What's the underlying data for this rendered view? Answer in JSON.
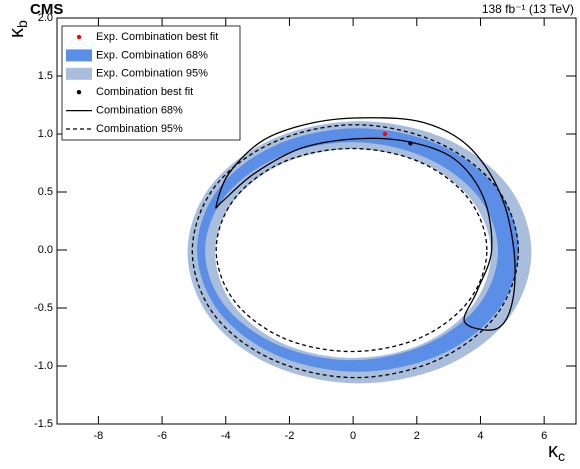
{
  "chart_data": {
    "type": "contour",
    "title": "CMS",
    "subtitle": "138 fb⁻¹ (13 TeV)",
    "xlabel": {
      "symbol": "κ",
      "subscript": "c"
    },
    "ylabel": {
      "symbol": "κ",
      "subscript": "b"
    },
    "xlim": [
      -9.3,
      7
    ],
    "ylim": [
      -1.5,
      2.0
    ],
    "xticks": [
      -8,
      -6,
      -4,
      -2,
      0,
      2,
      4,
      6
    ],
    "yticks": [
      -1.5,
      {
        "value": -1.0,
        "label": "-1.0"
      },
      -0.5,
      {
        "value": 0.0,
        "label": "0.0"
      },
      0.5,
      {
        "value": 1.0,
        "label": "1.0"
      },
      1.5,
      {
        "value": 2.0,
        "label": "2.0"
      }
    ],
    "series": [
      {
        "name": "Exp. Combination best fit",
        "kind": "point",
        "color": "#ff0000",
        "x": [
          1.0
        ],
        "y": [
          1.0
        ]
      },
      {
        "name": "Exp. Combination 68%",
        "kind": "band",
        "color": "#5b8ee6",
        "outer": {
          "x": [
            5.2,
            4.52,
            2.68,
            0.15,
            -2.38,
            -4.22,
            -4.9,
            -4.22,
            -2.38,
            0.15,
            2.68,
            4.52
          ],
          "y": [
            0,
            0.53,
            0.91,
            1.05,
            0.91,
            0.53,
            0,
            -0.53,
            -0.91,
            -1.05,
            -0.91,
            -0.53
          ]
        },
        "inner": {
          "x": [
            4.55,
            3.93,
            2.25,
            -0.05,
            -2.35,
            -4.03,
            -4.65,
            -4.03,
            -2.35,
            -0.05,
            2.25,
            3.93
          ],
          "y": [
            -0.01,
            0.46,
            0.8,
            0.93,
            0.8,
            0.46,
            -0.01,
            -0.48,
            -0.82,
            -0.95,
            -0.82,
            -0.48
          ]
        }
      },
      {
        "name": "Exp. Combination 95%",
        "kind": "band",
        "color": "#a9bedc",
        "outer": {
          "x": [
            5.6,
            4.88,
            2.9,
            0.2,
            -2.5,
            -4.48,
            -5.2,
            -4.48,
            -2.5,
            0.2,
            2.9,
            4.88
          ],
          "y": [
            -0.02,
            0.55,
            0.96,
            1.11,
            0.96,
            0.55,
            -0.02,
            -0.59,
            -1.0,
            -1.15,
            -1.0,
            -0.59
          ]
        },
        "inner": {
          "x": [
            4.33,
            3.75,
            2.17,
            0,
            -2.17,
            -3.75,
            -4.33,
            -3.75,
            -2.17,
            0,
            2.17,
            3.75
          ],
          "y": [
            -0.03,
            0.42,
            0.75,
            0.87,
            0.75,
            0.42,
            -0.03,
            -0.48,
            -0.81,
            -0.93,
            -0.81,
            -0.48
          ]
        }
      },
      {
        "name": "Combination best fit",
        "kind": "point",
        "color": "#000000",
        "x": [
          1.8
        ],
        "y": [
          0.92
        ]
      },
      {
        "name": "Combination 68%",
        "kind": "line",
        "color": "#000000",
        "dashed": false,
        "lines": [
          {
            "x": [
              -4.3,
              -3.9,
              -2.8,
              -1.2,
              0.5,
              2.2,
              3.6,
              4.6,
              5.05,
              5.0,
              4.5,
              3.5,
              3.9,
              4.35,
              4.1,
              3.2,
              1.8,
              0.2,
              -1.6,
              -3.1,
              -4.1
            ],
            "y": [
              0.38,
              0.66,
              0.95,
              1.1,
              1.14,
              1.1,
              0.9,
              0.5,
              0.0,
              -0.45,
              -0.68,
              -0.62,
              -0.35,
              0.0,
              0.45,
              0.78,
              0.93,
              0.96,
              0.88,
              0.66,
              0.42
            ]
          }
        ]
      },
      {
        "name": "Combination 95%",
        "kind": "line",
        "color": "#000000",
        "dashed": true,
        "lines": [
          {
            "x": [
              5.19,
              4.5,
              2.63,
              0.07,
              -2.49,
              -4.36,
              -5.05,
              -4.36,
              -2.49,
              0.07,
              2.63,
              4.5
            ],
            "y": [
              -0.01,
              0.54,
              0.93,
              1.08,
              0.93,
              0.54,
              -0.01,
              -0.56,
              -0.95,
              -1.1,
              -0.95,
              -0.56
            ]
          },
          {
            "x": [
              4.2,
              3.63,
              2.08,
              -0.05,
              -2.18,
              -3.73,
              -4.3,
              -3.73,
              -2.18,
              -0.05,
              2.08,
              3.63
            ],
            "y": [
              0,
              0.44,
              0.76,
              0.875,
              0.76,
              0.44,
              0,
              -0.44,
              -0.76,
              -0.875,
              -0.76,
              -0.44
            ]
          }
        ]
      }
    ]
  }
}
